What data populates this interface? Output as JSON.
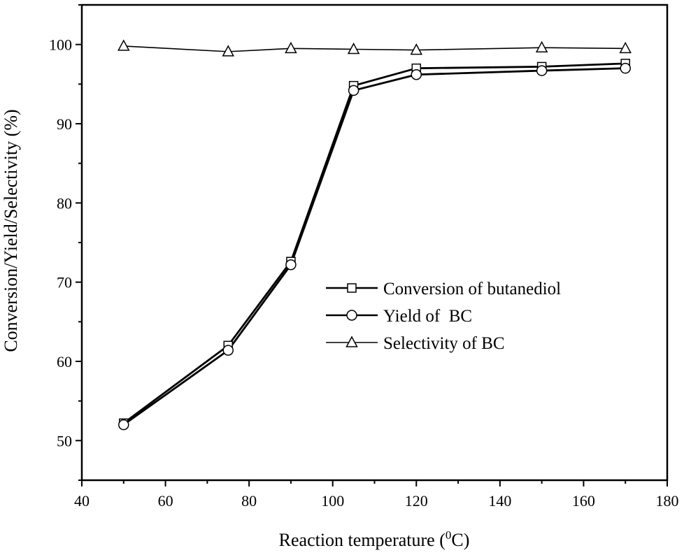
{
  "chart_data": {
    "type": "line",
    "title": "",
    "xlabel": "Reaction temperature (",
    "xlabel_sup": "0",
    "xlabel_unit": "C)",
    "ylabel": "Conversion/Yield/Selectivity (%)",
    "xlim": [
      40,
      180
    ],
    "ylim": [
      45,
      105
    ],
    "x_ticks": [
      40,
      60,
      80,
      100,
      120,
      140,
      160,
      180
    ],
    "y_ticks": [
      50,
      60,
      70,
      80,
      90,
      100
    ],
    "x_tick_labels": [
      "40",
      "60",
      "80",
      "100",
      "120",
      "140",
      "160",
      "180"
    ],
    "y_tick_labels": [
      "50",
      "60",
      "70",
      "80",
      "90",
      "100"
    ],
    "grid": false,
    "legend_position": "center-right",
    "x": [
      50,
      75,
      90,
      105,
      120,
      150,
      170
    ],
    "series": [
      {
        "name": "Conversion of butanediol",
        "marker": "square",
        "values": [
          52.2,
          62.0,
          72.6,
          94.8,
          97.0,
          97.2,
          97.6
        ]
      },
      {
        "name": "Yield of  BC",
        "marker": "circle",
        "values": [
          52.0,
          61.4,
          72.2,
          94.2,
          96.2,
          96.7,
          97.0
        ]
      },
      {
        "name": "Selectivity of BC",
        "marker": "triangle",
        "values": [
          99.8,
          99.1,
          99.5,
          99.4,
          99.3,
          99.6,
          99.5
        ]
      }
    ]
  }
}
